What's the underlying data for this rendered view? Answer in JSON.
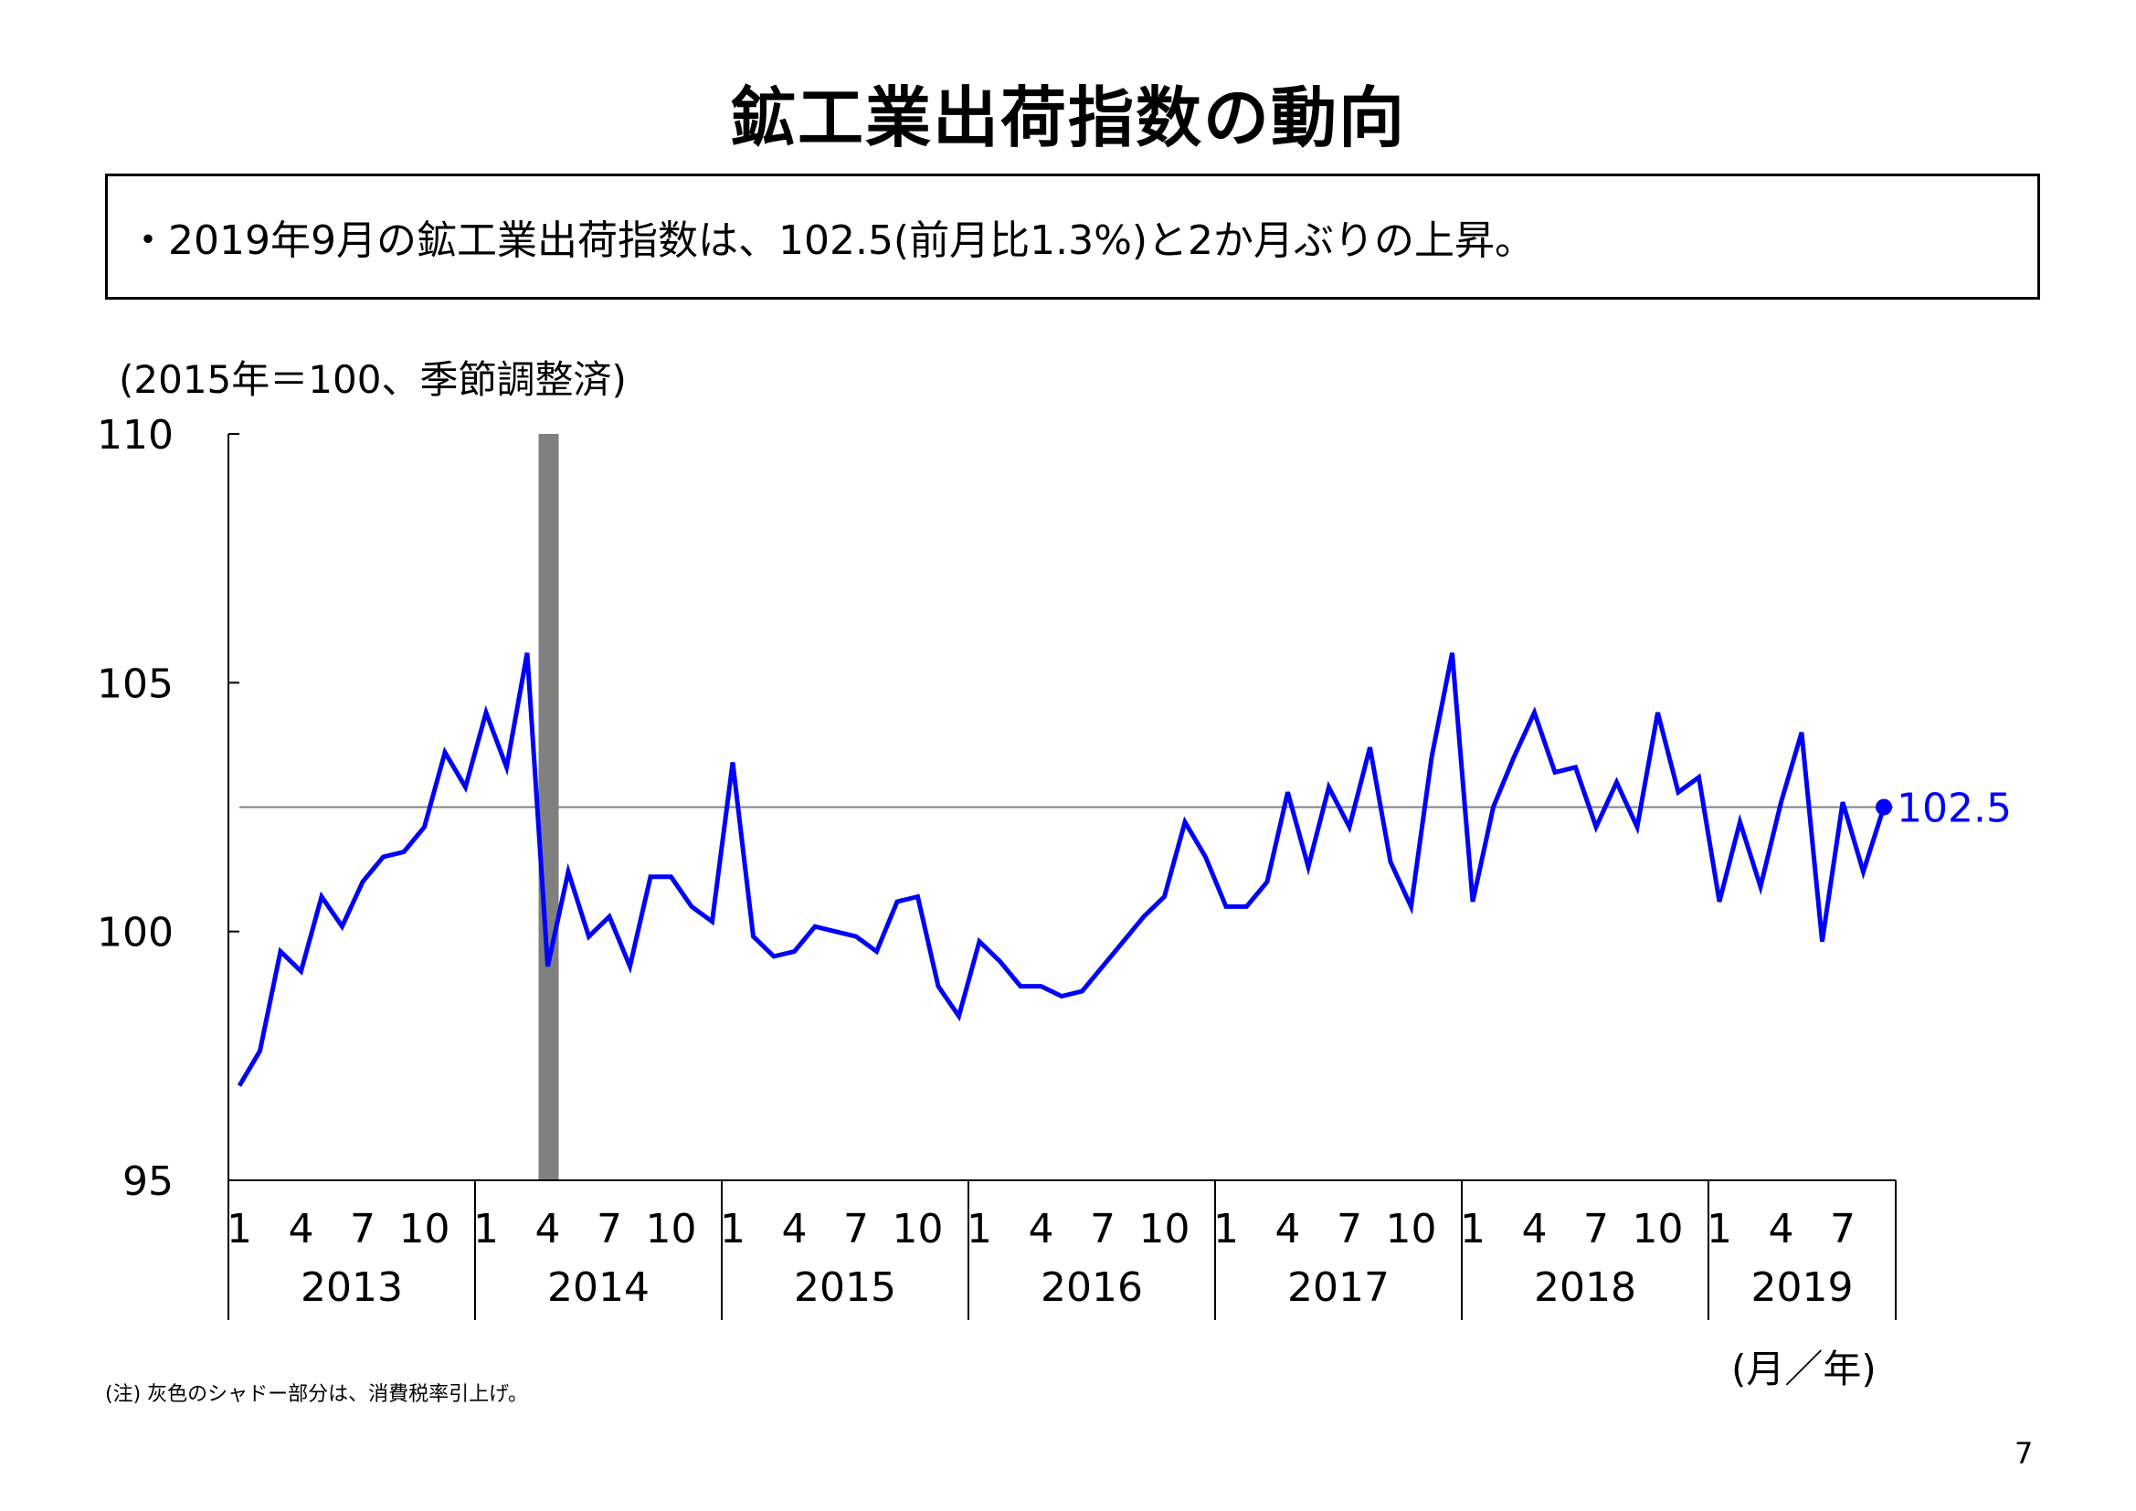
{
  "header": {
    "title": "鉱工業出荷指数の動向",
    "summary": "・2019年9月の鉱工業出荷指数は、102.5(前月比1.3%)と2か月ぶりの上昇。"
  },
  "footer": {
    "note": "(注) 灰色のシャドー部分は、消費税率引上げ。",
    "page_number": "7"
  },
  "chart_data": {
    "type": "line",
    "title": "",
    "ylabel": "(2015年＝100、季節調整済)",
    "xlabel": "(月／年)",
    "ylim": [
      95,
      110
    ],
    "yticks": [
      "95",
      "100",
      "105",
      "110"
    ],
    "grid": false,
    "legend": "none",
    "years": [
      "2013",
      "2014",
      "2015",
      "2016",
      "2017",
      "2018",
      "2019"
    ],
    "month_ticks": [
      "1",
      "4",
      "7",
      "10"
    ],
    "x_start": "2013-01",
    "x_end": "2019-09",
    "shade": {
      "from": "2014-04",
      "to": "2014-04",
      "color": "#808080"
    },
    "reference_line": {
      "y": 102.5,
      "color": "#808080"
    },
    "end_label": "102.5",
    "series": [
      {
        "color": "#0000ff",
        "values": [
          96.9,
          97.6,
          99.6,
          99.2,
          100.7,
          100.1,
          101.0,
          101.5,
          101.6,
          102.1,
          103.6,
          102.9,
          104.4,
          103.3,
          105.6,
          99.3,
          101.2,
          99.9,
          100.3,
          99.3,
          101.1,
          101.1,
          100.5,
          100.2,
          103.4,
          99.9,
          99.5,
          99.6,
          100.1,
          100.0,
          99.9,
          99.6,
          100.6,
          100.7,
          98.9,
          98.3,
          99.8,
          99.4,
          98.9,
          98.9,
          98.7,
          98.8,
          99.3,
          99.8,
          100.3,
          100.7,
          102.2,
          101.5,
          100.5,
          100.5,
          101.0,
          102.8,
          101.3,
          102.9,
          102.1,
          103.7,
          101.4,
          100.5,
          103.5,
          105.6,
          100.6,
          102.5,
          103.5,
          104.4,
          103.2,
          103.3,
          102.1,
          103.0,
          102.1,
          104.4,
          102.8,
          103.1,
          100.6,
          102.2,
          100.9,
          102.6,
          104.0,
          99.8,
          102.6,
          101.2,
          102.5
        ]
      }
    ]
  }
}
